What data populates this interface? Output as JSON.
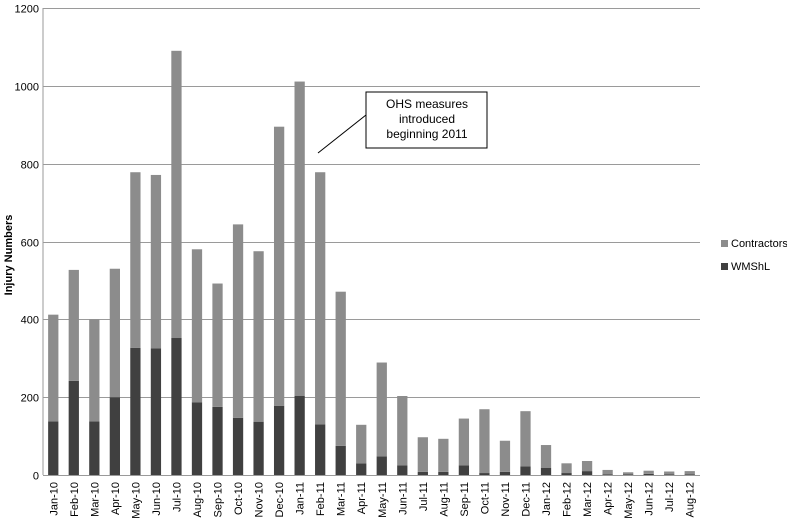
{
  "chart_data": {
    "type": "bar",
    "stacked": true,
    "title": "",
    "xlabel": "",
    "ylabel": "Injury Numbers",
    "ylim": [
      0,
      1200
    ],
    "yticks": [
      0,
      200,
      400,
      600,
      800,
      1000,
      1200
    ],
    "grid": true,
    "legend_position": "right",
    "categories": [
      "Jan-10",
      "Feb-10",
      "Mar-10",
      "Apr-10",
      "May-10",
      "Jun-10",
      "Jul-10",
      "Aug-10",
      "Sep-10",
      "Oct-10",
      "Nov-10",
      "Dec-10",
      "Jan-11",
      "Feb-11",
      "Mar-11",
      "Apr-11",
      "May-11",
      "Jun-11",
      "Jul-11",
      "Aug-11",
      "Sep-11",
      "Oct-11",
      "Nov-11",
      "Dec-11",
      "Jan-12",
      "Feb-12",
      "Mar-12",
      "Apr-12",
      "May-12",
      "Jun-12",
      "Jul-12",
      "Aug-12"
    ],
    "series": [
      {
        "name": "WMShL",
        "color": "#404040",
        "values": [
          138,
          242,
          138,
          200,
          327,
          325,
          352,
          187,
          175,
          147,
          137,
          178,
          203,
          130,
          75,
          30,
          48,
          25,
          8,
          8,
          25,
          5,
          8,
          22,
          18,
          5,
          10,
          2,
          2,
          3,
          2,
          2
        ]
      },
      {
        "name": "Contractors",
        "color": "#8c8c8c",
        "values": [
          274,
          285,
          262,
          330,
          451,
          446,
          738,
          393,
          317,
          497,
          438,
          717,
          808,
          648,
          396,
          99,
          241,
          178,
          89,
          85,
          120,
          164,
          80,
          142,
          59,
          25,
          26,
          11,
          5,
          8,
          7,
          8
        ]
      }
    ],
    "annotations": [
      {
        "text_lines": [
          "OHS measures",
          "introduced",
          "beginning 2011"
        ],
        "points_to": "Jan-11"
      }
    ]
  }
}
